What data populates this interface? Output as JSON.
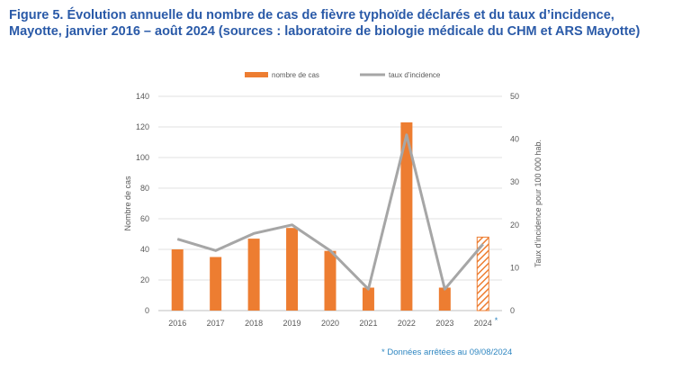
{
  "figure": {
    "title_line1": "Figure 5. Évolution annuelle du nombre de cas de fièvre typhoïde déclarés et du taux d’incidence,",
    "title_line2": "Mayotte, janvier 2016 – août 2024 (sources : laboratoire de biologie médicale du CHM et ARS Mayotte)",
    "footnote": "* Données arrêtées au 09/08/2024"
  },
  "colors": {
    "bars": "#ed7d31",
    "line": "#a6a6a6",
    "title": "#2a5aa8",
    "footnote": "#2e86c1",
    "asterisk": "#2e86c1"
  },
  "chart_data": {
    "type": "bar",
    "categories": [
      "2016",
      "2017",
      "2018",
      "2019",
      "2020",
      "2021",
      "2022",
      "2023",
      "2024"
    ],
    "category_marks": [
      "",
      "",
      "",
      "",
      "",
      "",
      "",
      "",
      "*"
    ],
    "series": [
      {
        "name": "nombre de cas",
        "type": "bar",
        "axis": "left",
        "values": [
          40,
          35,
          47,
          54,
          39,
          15,
          123,
          15,
          48
        ],
        "hatched": [
          false,
          false,
          false,
          false,
          false,
          false,
          false,
          false,
          true
        ]
      },
      {
        "name": "taux d’incidence",
        "type": "line",
        "axis": "right",
        "values": [
          16.7,
          14,
          18,
          20,
          14,
          5,
          41,
          5,
          15.5
        ]
      }
    ],
    "y_left": {
      "label": "Nombre de cas",
      "min": 0,
      "max": 140,
      "ticks": [
        "0",
        "20",
        "40",
        "60",
        "80",
        "100",
        "120",
        "140"
      ]
    },
    "y_right": {
      "label": "Taux d’incidence pour 100 000 hab.",
      "min": 0,
      "max": 50,
      "ticks": [
        "0",
        "10",
        "20",
        "30",
        "40",
        "50"
      ]
    },
    "grid": true,
    "legend_position": "top-center"
  }
}
